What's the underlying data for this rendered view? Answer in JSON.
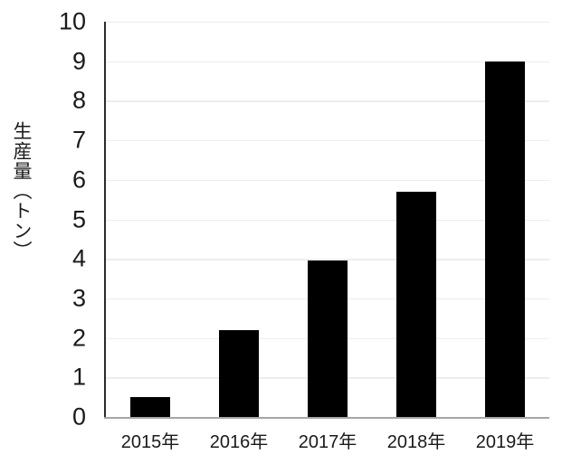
{
  "chart_data": {
    "type": "bar",
    "title": "",
    "xlabel": "",
    "ylabel": "生産量（トン）",
    "categories": [
      "2015年",
      "2016年",
      "2017年",
      "2018年",
      "2019年"
    ],
    "values": [
      0.5,
      2.2,
      3.95,
      5.7,
      9.0
    ],
    "ylim": [
      0,
      10
    ],
    "ytick_step": 1,
    "ytick_labels": [
      "0",
      "1",
      "2",
      "3",
      "4",
      "5",
      "6",
      "7",
      "8",
      "9",
      "10"
    ],
    "grid": true,
    "legend": false,
    "colors": {
      "bar": "#000000",
      "gridline": "#ededed",
      "y_axis_line": "#2b2b2b",
      "x_axis_line": "#a6a6a6",
      "text": "#1a1a1a",
      "background": "#ffffff"
    }
  }
}
